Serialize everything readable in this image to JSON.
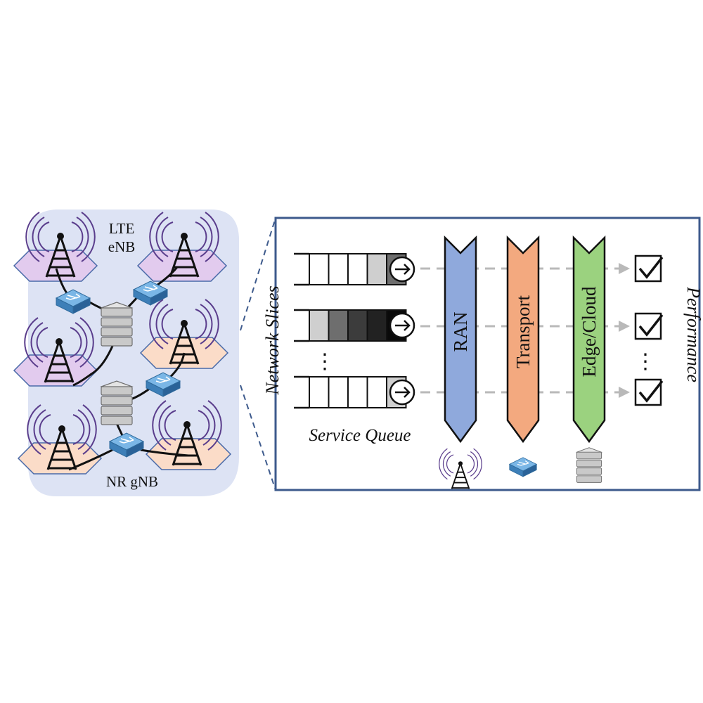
{
  "network": {
    "lte_label_line1": "LTE",
    "lte_label_line2": "eNB",
    "nr_label": "NR gNB"
  },
  "panel": {
    "network_slices_label": "Network Slices",
    "service_queue_label": "Service Queue",
    "performance_label": "Performance",
    "vertical_dots": "⋮"
  },
  "queues": [
    {
      "slot_fills": [
        "#ffffff",
        "#ffffff",
        "#ffffff",
        "#cfcfcf",
        "#6e6e6e"
      ]
    },
    {
      "slot_fills": [
        "#cfcfcf",
        "#6e6e6e",
        "#3c3c3c",
        "#222222",
        "#0a0a0a"
      ]
    },
    {
      "slot_fills": [
        "#ffffff",
        "#ffffff",
        "#ffffff",
        "#ffffff",
        "#cfcfcf"
      ]
    }
  ],
  "stages": [
    {
      "label": "RAN",
      "fill": "#8fa9dc",
      "icon": "antenna-tower-icon"
    },
    {
      "label": "Transport",
      "fill": "#f3a97f",
      "icon": "network-switch-icon"
    },
    {
      "label": "Edge/Cloud",
      "fill": "#9bd27f",
      "icon": "server-stack-icon"
    }
  ],
  "colors": {
    "network_area": "#dde3f4",
    "lte_cell": "#e2cbee",
    "nr_cell": "#fbdcc8",
    "panel_border": "#3d5a8c",
    "dashed_arrow": "#b9b9b9",
    "switch": "#4a8fc6"
  }
}
